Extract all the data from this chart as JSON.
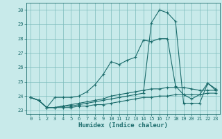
{
  "xlabel": "Humidex (Indice chaleur)",
  "background_color": "#c8eaea",
  "grid_color": "#7bbcbc",
  "line_color": "#1a6b6b",
  "xlim": [
    -0.5,
    23.5
  ],
  "ylim": [
    22.75,
    30.5
  ],
  "yticks": [
    23,
    24,
    25,
    26,
    27,
    28,
    29,
    30
  ],
  "xticks": [
    0,
    1,
    2,
    3,
    4,
    5,
    6,
    7,
    8,
    9,
    10,
    11,
    12,
    13,
    14,
    15,
    16,
    17,
    18,
    19,
    20,
    21,
    22,
    23
  ],
  "series": [
    [
      23.9,
      23.7,
      23.2,
      23.9,
      23.9,
      23.9,
      24.0,
      24.3,
      24.8,
      25.5,
      26.4,
      26.2,
      26.5,
      26.7,
      27.9,
      27.8,
      28.0,
      28.0,
      24.7,
      24.1,
      23.8,
      24.1,
      24.9,
      24.4
    ],
    [
      23.9,
      23.7,
      23.2,
      23.2,
      23.3,
      23.3,
      23.4,
      23.5,
      23.6,
      23.7,
      23.8,
      23.9,
      24.0,
      24.1,
      24.2,
      29.1,
      30.0,
      29.8,
      29.2,
      23.5,
      23.5,
      23.5,
      24.9,
      24.5
    ],
    [
      23.9,
      23.7,
      23.2,
      23.2,
      23.3,
      23.4,
      23.5,
      23.6,
      23.7,
      23.8,
      24.0,
      24.1,
      24.2,
      24.3,
      24.4,
      24.5,
      24.5,
      24.6,
      24.6,
      24.6,
      24.5,
      24.4,
      24.4,
      24.4
    ],
    [
      23.9,
      23.7,
      23.2,
      23.2,
      23.2,
      23.2,
      23.3,
      23.3,
      23.4,
      23.4,
      23.5,
      23.6,
      23.7,
      23.8,
      23.9,
      23.9,
      24.0,
      24.0,
      24.1,
      24.1,
      24.1,
      24.1,
      24.2,
      24.2
    ]
  ],
  "x": [
    0,
    1,
    2,
    3,
    4,
    5,
    6,
    7,
    8,
    9,
    10,
    11,
    12,
    13,
    14,
    15,
    16,
    17,
    18,
    19,
    20,
    21,
    22,
    23
  ]
}
